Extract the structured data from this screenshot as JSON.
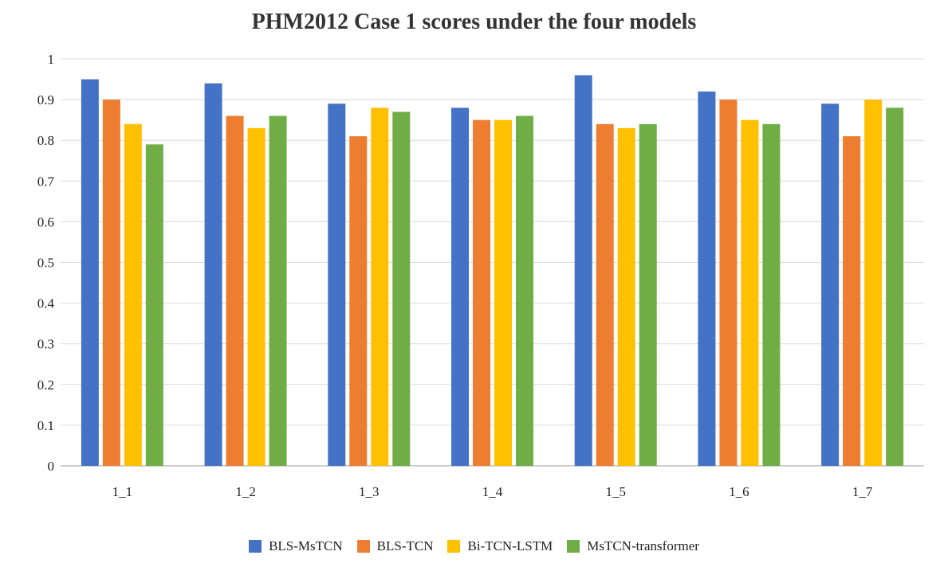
{
  "chart_data": {
    "type": "bar",
    "title": "PHM2012 Case 1 scores under the four models",
    "xlabel": "",
    "ylabel": "",
    "categories": [
      "1_1",
      "1_2",
      "1_3",
      "1_4",
      "1_5",
      "1_6",
      "1_7"
    ],
    "series": [
      {
        "name": "BLS-MsTCN",
        "color": "#4472C4",
        "values": [
          0.95,
          0.94,
          0.89,
          0.88,
          0.96,
          0.92,
          0.89
        ]
      },
      {
        "name": "BLS-TCN",
        "color": "#ED7D31",
        "values": [
          0.9,
          0.86,
          0.81,
          0.85,
          0.84,
          0.9,
          0.81
        ]
      },
      {
        "name": "Bi-TCN-LSTM",
        "color": "#FFC000",
        "values": [
          0.84,
          0.83,
          0.88,
          0.85,
          0.83,
          0.85,
          0.9
        ]
      },
      {
        "name": "MsTCN-transformer",
        "color": "#70AD47",
        "values": [
          0.79,
          0.86,
          0.87,
          0.86,
          0.84,
          0.84,
          0.88
        ]
      }
    ],
    "ylim": [
      0,
      1
    ],
    "yticks": [
      "0",
      "0.1",
      "0.2",
      "0.3",
      "0.4",
      "0.5",
      "0.6",
      "0.7",
      "0.8",
      "0.9",
      "1"
    ],
    "grid": true,
    "legend_position": "bottom"
  }
}
